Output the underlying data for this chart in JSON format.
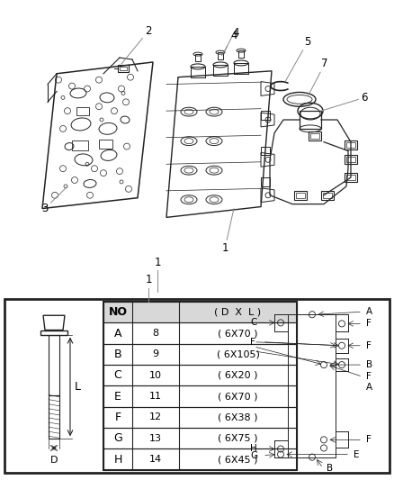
{
  "bg_color": "#ffffff",
  "table_rows": [
    {
      "letter": "NO",
      "number": "",
      "dim": "( D  X  L )"
    },
    {
      "letter": "A",
      "number": "8",
      "dim": "( 6X70 )"
    },
    {
      "letter": "B",
      "number": "9",
      "dim": "( 6X105)"
    },
    {
      "letter": "C",
      "number": "10",
      "dim": "( 6X20 )"
    },
    {
      "letter": "E",
      "number": "11",
      "dim": "( 6X70 )"
    },
    {
      "letter": "F",
      "number": "12",
      "dim": "( 6X38 )"
    },
    {
      "letter": "G",
      "number": "13",
      "dim": "( 6X75 )"
    },
    {
      "letter": "H",
      "number": "14",
      "dim": "( 6X45 )"
    }
  ],
  "fig_width": 4.38,
  "fig_height": 5.33,
  "dpi": 100,
  "lc": "#222222",
  "gray": "#888888"
}
